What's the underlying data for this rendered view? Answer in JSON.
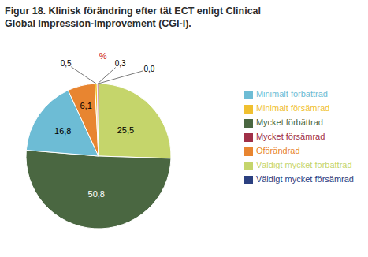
{
  "chart_data": {
    "type": "pie",
    "title": "Figur 18. Klinisk förändring efter tät ECT enligt Clinical",
    "subtitle": "Global Impression-Improvement (CGI-I).",
    "categories": [
      "Väldigt mycket förbättrad",
      "Mycket förbättrad",
      "Minimalt förbättrad",
      "Oförändrad",
      "Minimalt försämrad",
      "Mycket försämrad",
      "Väldigt mycket försämrad"
    ],
    "values": [
      25.5,
      50.8,
      16.8,
      6.1,
      0.5,
      0.3,
      0.0
    ],
    "value_labels": [
      "25,5",
      "50,8",
      "16,8",
      "6,1",
      "0,5",
      "0,3",
      "0,0"
    ],
    "colors": [
      "#c5d56b",
      "#4a6741",
      "#6dbcd5",
      "#e88530",
      "#f0c030",
      "#a03048",
      "#2b4080"
    ],
    "data_labels": true,
    "legend": "right",
    "annotations": [
      {
        "text": "%",
        "color": "#cc2222"
      }
    ]
  }
}
